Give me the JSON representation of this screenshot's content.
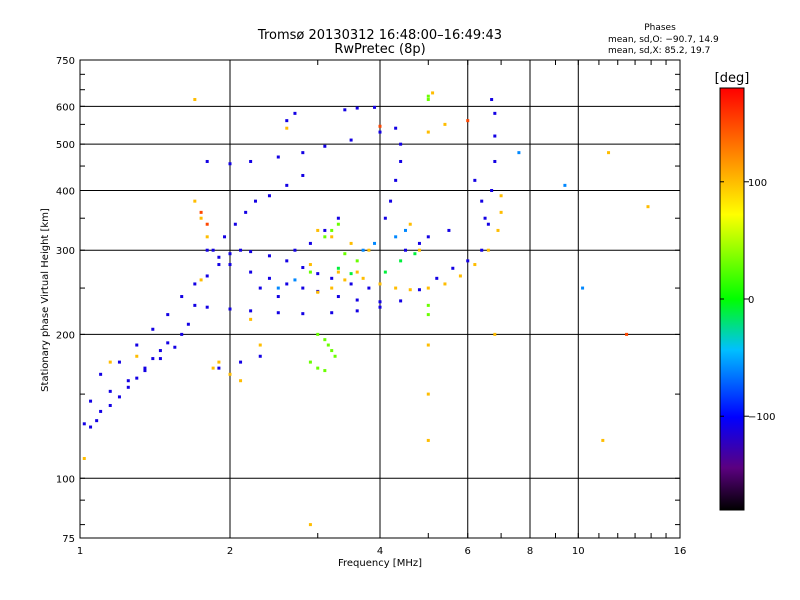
{
  "chart_data": {
    "type": "scatter",
    "title_line1": "Tromsø 20130312 16:48:00–16:49:43",
    "title_line2": "RwPretec (8p)",
    "info_heading": "Phases",
    "info_line1": "mean, sd,O: −90.7, 14.9",
    "info_line2": "mean, sd,X: 85.2, 19.7",
    "xlabel": "Frequency [MHz]",
    "ylabel": "Stationary phase Virtual Height [km]",
    "x_scale": "log",
    "y_scale": "log",
    "xlim": [
      1,
      16
    ],
    "ylim": [
      75,
      750
    ],
    "x_ticks": [
      1,
      2,
      4,
      6,
      8,
      10,
      16
    ],
    "x_tick_labels": [
      "1",
      "2",
      "4",
      "6",
      "8",
      "10",
      "16"
    ],
    "y_ticks": [
      75,
      100,
      200,
      300,
      400,
      500,
      600,
      750
    ],
    "y_tick_labels": [
      "75",
      "100",
      "200",
      "300",
      "400",
      "500",
      "600",
      "750"
    ],
    "x_gridlines": [
      2,
      4,
      6,
      8,
      10
    ],
    "y_gridlines": [
      100,
      200,
      300,
      400,
      500,
      600
    ],
    "colorbar": {
      "label": "[deg]",
      "range": [
        -180,
        180
      ],
      "ticks": [
        100,
        0,
        -100
      ],
      "tick_labels": [
        "100",
        "0",
        "−100"
      ]
    },
    "series": [
      {
        "phase": -110,
        "points": [
          [
            1.02,
            130
          ],
          [
            1.05,
            128
          ],
          [
            1.08,
            132
          ],
          [
            1.1,
            138
          ],
          [
            1.15,
            142
          ],
          [
            1.2,
            148
          ],
          [
            1.25,
            155
          ],
          [
            1.3,
            162
          ],
          [
            1.35,
            170
          ],
          [
            1.4,
            178
          ],
          [
            1.45,
            185
          ],
          [
            1.5,
            192
          ],
          [
            1.1,
            165
          ],
          [
            1.2,
            175
          ],
          [
            1.3,
            190
          ],
          [
            1.4,
            205
          ],
          [
            1.5,
            220
          ],
          [
            1.6,
            240
          ],
          [
            1.7,
            255
          ],
          [
            1.8,
            265
          ],
          [
            1.9,
            280
          ],
          [
            2.0,
            295
          ],
          [
            2.1,
            300
          ],
          [
            2.2,
            298
          ],
          [
            2.4,
            292
          ],
          [
            2.6,
            285
          ],
          [
            2.8,
            276
          ],
          [
            3.0,
            268
          ],
          [
            3.2,
            262
          ],
          [
            3.5,
            255
          ],
          [
            3.8,
            250
          ],
          [
            1.8,
            300
          ],
          [
            1.9,
            290
          ],
          [
            2.0,
            280
          ],
          [
            2.2,
            270
          ],
          [
            2.4,
            262
          ],
          [
            2.6,
            255
          ],
          [
            2.8,
            250
          ],
          [
            3.0,
            246
          ],
          [
            3.3,
            240
          ],
          [
            3.6,
            236
          ],
          [
            4.0,
            234
          ],
          [
            1.7,
            230
          ],
          [
            1.8,
            228
          ],
          [
            2.0,
            226
          ],
          [
            2.2,
            224
          ],
          [
            2.5,
            222
          ],
          [
            2.8,
            221
          ],
          [
            3.2,
            222
          ],
          [
            3.6,
            224
          ],
          [
            4.0,
            228
          ],
          [
            4.4,
            235
          ],
          [
            4.8,
            248
          ],
          [
            5.2,
            262
          ],
          [
            5.6,
            275
          ],
          [
            6.0,
            285
          ],
          [
            6.4,
            300
          ],
          [
            6.6,
            340
          ],
          [
            6.7,
            400
          ],
          [
            6.8,
            460
          ],
          [
            6.8,
            520
          ],
          [
            6.8,
            580
          ],
          [
            6.7,
            620
          ],
          [
            4.1,
            350
          ],
          [
            4.2,
            380
          ],
          [
            4.3,
            420
          ],
          [
            4.4,
            460
          ],
          [
            4.4,
            500
          ],
          [
            4.3,
            540
          ],
          [
            1.8,
            460
          ],
          [
            2.0,
            455
          ],
          [
            2.2,
            460
          ],
          [
            2.5,
            470
          ],
          [
            2.8,
            480
          ],
          [
            3.1,
            495
          ],
          [
            3.5,
            510
          ],
          [
            4.0,
            530
          ],
          [
            2.6,
            560
          ],
          [
            2.7,
            580
          ],
          [
            3.4,
            590
          ],
          [
            3.6,
            595
          ],
          [
            3.9,
            597
          ],
          [
            2.3,
            180
          ],
          [
            2.1,
            175
          ],
          [
            1.9,
            170
          ],
          [
            1.85,
            300
          ],
          [
            2.3,
            250
          ],
          [
            2.5,
            240
          ],
          [
            2.7,
            300
          ],
          [
            2.9,
            310
          ],
          [
            3.1,
            330
          ],
          [
            3.3,
            350
          ],
          [
            2.4,
            390
          ],
          [
            2.6,
            410
          ],
          [
            2.8,
            430
          ],
          [
            1.95,
            320
          ],
          [
            2.05,
            340
          ],
          [
            2.15,
            360
          ],
          [
            2.25,
            380
          ],
          [
            1.05,
            145
          ],
          [
            1.15,
            152
          ],
          [
            1.25,
            160
          ],
          [
            1.35,
            168
          ],
          [
            1.45,
            178
          ],
          [
            1.55,
            188
          ],
          [
            1.6,
            200
          ],
          [
            1.65,
            210
          ],
          [
            4.5,
            300
          ],
          [
            4.8,
            310
          ],
          [
            5.0,
            320
          ],
          [
            5.5,
            330
          ],
          [
            6.2,
            420
          ],
          [
            6.4,
            380
          ],
          [
            6.5,
            350
          ]
        ]
      },
      {
        "phase": 100,
        "points": [
          [
            1.7,
            620
          ],
          [
            1.7,
            380
          ],
          [
            1.75,
            350
          ],
          [
            1.8,
            320
          ],
          [
            1.75,
            260
          ],
          [
            1.85,
            170
          ],
          [
            2.1,
            160
          ],
          [
            2.3,
            190
          ],
          [
            2.6,
            540
          ],
          [
            2.9,
            80
          ],
          [
            3.0,
            330
          ],
          [
            3.2,
            320
          ],
          [
            3.5,
            310
          ],
          [
            3.8,
            300
          ],
          [
            3.6,
            270
          ],
          [
            3.4,
            260
          ],
          [
            3.2,
            250
          ],
          [
            3.0,
            245
          ],
          [
            2.9,
            280
          ],
          [
            3.3,
            270
          ],
          [
            3.7,
            262
          ],
          [
            4.0,
            255
          ],
          [
            4.3,
            250
          ],
          [
            4.6,
            248
          ],
          [
            5.0,
            250
          ],
          [
            5.4,
            255
          ],
          [
            5.8,
            265
          ],
          [
            6.2,
            280
          ],
          [
            6.6,
            300
          ],
          [
            6.9,
            330
          ],
          [
            7.0,
            360
          ],
          [
            7.0,
            390
          ],
          [
            5.1,
            640
          ],
          [
            5.0,
            530
          ],
          [
            4.8,
            300
          ],
          [
            5.4,
            550
          ],
          [
            11.5,
            480
          ],
          [
            11.2,
            120
          ],
          [
            13.8,
            370
          ],
          [
            6.8,
            200
          ],
          [
            2.2,
            215
          ],
          [
            1.9,
            175
          ],
          [
            2.0,
            165
          ],
          [
            5.0,
            190
          ],
          [
            5.0,
            150
          ],
          [
            5.0,
            120
          ],
          [
            4.6,
            340
          ],
          [
            1.3,
            180
          ],
          [
            1.15,
            175
          ],
          [
            1.02,
            110
          ]
        ]
      },
      {
        "phase": 30,
        "points": [
          [
            3.1,
            320
          ],
          [
            3.2,
            330
          ],
          [
            3.3,
            340
          ],
          [
            3.0,
            200
          ],
          [
            3.1,
            195
          ],
          [
            3.15,
            190
          ],
          [
            3.2,
            185
          ],
          [
            3.25,
            180
          ],
          [
            2.9,
            175
          ],
          [
            3.0,
            170
          ],
          [
            3.1,
            168
          ],
          [
            5.0,
            630
          ],
          [
            5.0,
            620
          ],
          [
            5.0,
            220
          ],
          [
            5.0,
            230
          ],
          [
            3.4,
            295
          ],
          [
            3.6,
            285
          ],
          [
            2.9,
            270
          ]
        ]
      },
      {
        "phase": 150,
        "points": [
          [
            12.5,
            200
          ],
          [
            1.75,
            360
          ],
          [
            1.8,
            340
          ],
          [
            4.0,
            545
          ],
          [
            6.0,
            560
          ]
        ]
      },
      {
        "phase": -10,
        "points": [
          [
            4.1,
            270
          ],
          [
            4.4,
            285
          ],
          [
            4.7,
            295
          ],
          [
            3.3,
            275
          ],
          [
            3.5,
            268
          ]
        ]
      },
      {
        "phase": -60,
        "points": [
          [
            4.3,
            320
          ],
          [
            4.5,
            330
          ],
          [
            3.9,
            310
          ],
          [
            3.7,
            300
          ],
          [
            2.7,
            260
          ],
          [
            2.5,
            250
          ],
          [
            9.4,
            410
          ],
          [
            10.2,
            250
          ],
          [
            7.6,
            480
          ]
        ]
      }
    ]
  }
}
